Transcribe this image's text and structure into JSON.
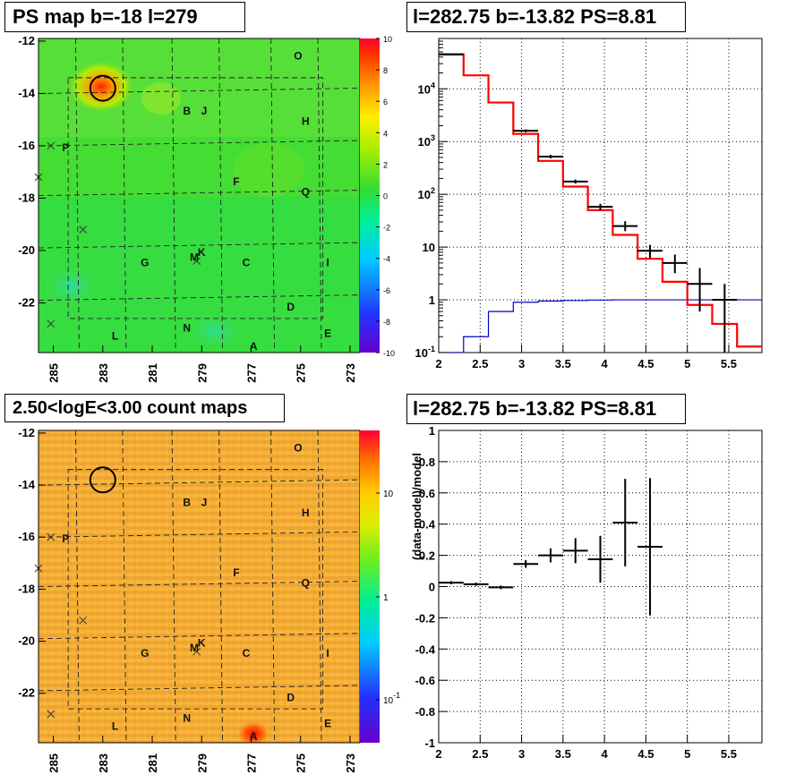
{
  "panels": {
    "ps_map_title": "PS map b=-18 l=279",
    "spectrum_title": "l=282.75 b=-13.82 PS=8.81",
    "count_map_title": "2.50<logE<3.00 count maps",
    "residual_title": "l=282.75 b=-13.82 PS=8.81"
  },
  "chart_data": [
    {
      "id": "ps-map",
      "type": "heatmap",
      "title": "PS map b=-18 l=279",
      "x_ticks": [
        "285",
        "283",
        "281",
        "279",
        "277",
        "275",
        "273"
      ],
      "y_ticks": [
        "-12",
        "-14",
        "-16",
        "-18",
        "-20",
        "-22"
      ],
      "xlim": [
        285.6,
        272.6
      ],
      "ylim": [
        -23.9,
        -12
      ],
      "colorbar": {
        "min": -10,
        "max": 10,
        "ticks": [
          "10",
          "8",
          "6",
          "4",
          "2",
          "0",
          "-2",
          "-4",
          "-6",
          "-8",
          "-10"
        ]
      },
      "source_marker": {
        "l": 283,
        "b": -13.8
      },
      "labels": [
        {
          "text": "O",
          "l": 275.1,
          "b": -12.7
        },
        {
          "text": "B",
          "l": 279.6,
          "b": -14.8
        },
        {
          "text": "J",
          "l": 278.9,
          "b": -14.8
        },
        {
          "text": "H",
          "l": 274.8,
          "b": -15.2
        },
        {
          "text": "P",
          "l": 284.5,
          "b": -16.2
        },
        {
          "text": "F",
          "l": 277.6,
          "b": -17.5
        },
        {
          "text": "Q",
          "l": 274.8,
          "b": -17.9
        },
        {
          "text": "G",
          "l": 281.3,
          "b": -20.6
        },
        {
          "text": "M",
          "l": 279.3,
          "b": -20.4
        },
        {
          "text": "K",
          "l": 279,
          "b": -20.2
        },
        {
          "text": "C",
          "l": 277.2,
          "b": -20.6
        },
        {
          "text": "I",
          "l": 273.9,
          "b": -20.6
        },
        {
          "text": "D",
          "l": 275.4,
          "b": -22.3
        },
        {
          "text": "L",
          "l": 282.5,
          "b": -23.4
        },
        {
          "text": "N",
          "l": 279.6,
          "b": -23.1
        },
        {
          "text": "E",
          "l": 273.9,
          "b": -23.3
        },
        {
          "text": "A",
          "l": 276.9,
          "b": -23.8
        }
      ],
      "crosses": [
        {
          "l": 285.1,
          "b": -16
        },
        {
          "l": 285.6,
          "b": -17.2
        },
        {
          "l": 283.8,
          "b": -19.2
        },
        {
          "l": 285.1,
          "b": -22.8
        },
        {
          "l": 279.2,
          "b": -20.4
        }
      ]
    },
    {
      "id": "spectrum",
      "type": "line",
      "title": "l=282.75 b=-13.82 PS=8.81",
      "x_ticks": [
        "2",
        "2.5",
        "3",
        "3.5",
        "4",
        "4.5",
        "5",
        "5.5"
      ],
      "y_ticks": [
        "10^-1",
        "1",
        "10",
        "10^2",
        "10^3",
        "10^4"
      ],
      "xlim": [
        2,
        5.9
      ],
      "ylim": [
        0.1,
        90000
      ],
      "ylog": true,
      "grid": true,
      "data_points": [
        {
          "x": 2.15,
          "y": 45000,
          "xerr": 0.15,
          "ylo": 44000,
          "yhi": 46000
        },
        {
          "x": 3.05,
          "y": 1600,
          "xerr": 0.15,
          "ylo": 1500,
          "yhi": 1700
        },
        {
          "x": 3.35,
          "y": 520,
          "xerr": 0.15,
          "ylo": 480,
          "yhi": 560
        },
        {
          "x": 3.65,
          "y": 175,
          "xerr": 0.15,
          "ylo": 160,
          "yhi": 190
        },
        {
          "x": 3.95,
          "y": 58,
          "xerr": 0.15,
          "ylo": 50,
          "yhi": 66
        },
        {
          "x": 4.25,
          "y": 25,
          "xerr": 0.15,
          "ylo": 20,
          "yhi": 31
        },
        {
          "x": 4.55,
          "y": 8.5,
          "xerr": 0.15,
          "ylo": 6.2,
          "yhi": 11
        },
        {
          "x": 4.85,
          "y": 5,
          "xerr": 0.15,
          "ylo": 3.2,
          "yhi": 7.2
        },
        {
          "x": 5.15,
          "y": 2,
          "xerr": 0.15,
          "ylo": 0.6,
          "yhi": 4
        },
        {
          "x": 5.45,
          "y": 1,
          "xerr": 0.15,
          "ylo": 0.1,
          "yhi": 2
        }
      ],
      "model_bins": {
        "edges": [
          2,
          2.3,
          2.6,
          2.9,
          3.2,
          3.5,
          3.8,
          4.1,
          4.4,
          4.7,
          5.0,
          5.3,
          5.6,
          5.9
        ],
        "values": [
          45000,
          18000,
          5500,
          1400,
          430,
          140,
          50,
          17,
          6,
          2.2,
          0.8,
          0.35,
          0.13
        ]
      },
      "background_bins": {
        "edges": [
          2,
          2.3,
          2.6,
          2.9,
          3.2,
          3.5,
          3.8,
          4.1,
          4.4,
          4.7,
          5.0,
          5.3,
          5.6,
          5.9
        ],
        "values": [
          0.1,
          0.2,
          0.6,
          0.9,
          0.95,
          0.97,
          0.99,
          1,
          1,
          1,
          1,
          1,
          1
        ]
      },
      "colors": {
        "model": "#ff0000",
        "background": "#0000cc",
        "data": "#000000"
      }
    },
    {
      "id": "count-map",
      "type": "heatmap",
      "title": "2.50<logE<3.00 count maps",
      "x_ticks": [
        "285",
        "283",
        "281",
        "279",
        "277",
        "275",
        "273"
      ],
      "y_ticks": [
        "-12",
        "-14",
        "-16",
        "-18",
        "-20",
        "-22"
      ],
      "colorbar": {
        "ticks": [
          "10",
          "1",
          "10^-1"
        ],
        "log": true
      }
    },
    {
      "id": "residual",
      "type": "scatter",
      "title": "l=282.75 b=-13.82 PS=8.81",
      "ylabel": "(data-model)/model",
      "x_ticks": [
        "2",
        "2.5",
        "3",
        "3.5",
        "4",
        "4.5",
        "5",
        "5.5"
      ],
      "y_ticks": [
        "1",
        "0.8",
        "0.6",
        "0.4",
        "0.2",
        "0",
        "-0.2",
        "-0.4",
        "-0.6",
        "-0.8",
        "-1"
      ],
      "xlim": [
        2,
        5.9
      ],
      "ylim": [
        -1,
        1
      ],
      "grid": true,
      "points": [
        {
          "x": 2.15,
          "y": 0.025,
          "xerr": 0.15,
          "err": 0.01
        },
        {
          "x": 2.45,
          "y": 0.015,
          "xerr": 0.15,
          "err": 0.01
        },
        {
          "x": 2.75,
          "y": -0.005,
          "xerr": 0.15,
          "err": 0.012
        },
        {
          "x": 3.05,
          "y": 0.145,
          "xerr": 0.15,
          "err": 0.025
        },
        {
          "x": 3.35,
          "y": 0.2,
          "xerr": 0.15,
          "err": 0.045
        },
        {
          "x": 3.65,
          "y": 0.23,
          "xerr": 0.15,
          "err": 0.08
        },
        {
          "x": 3.95,
          "y": 0.175,
          "xerr": 0.15,
          "err": 0.15
        },
        {
          "x": 4.25,
          "y": 0.41,
          "xerr": 0.15,
          "err": 0.28
        },
        {
          "x": 4.55,
          "y": 0.255,
          "xerr": 0.15,
          "err": 0.44
        }
      ]
    }
  ]
}
